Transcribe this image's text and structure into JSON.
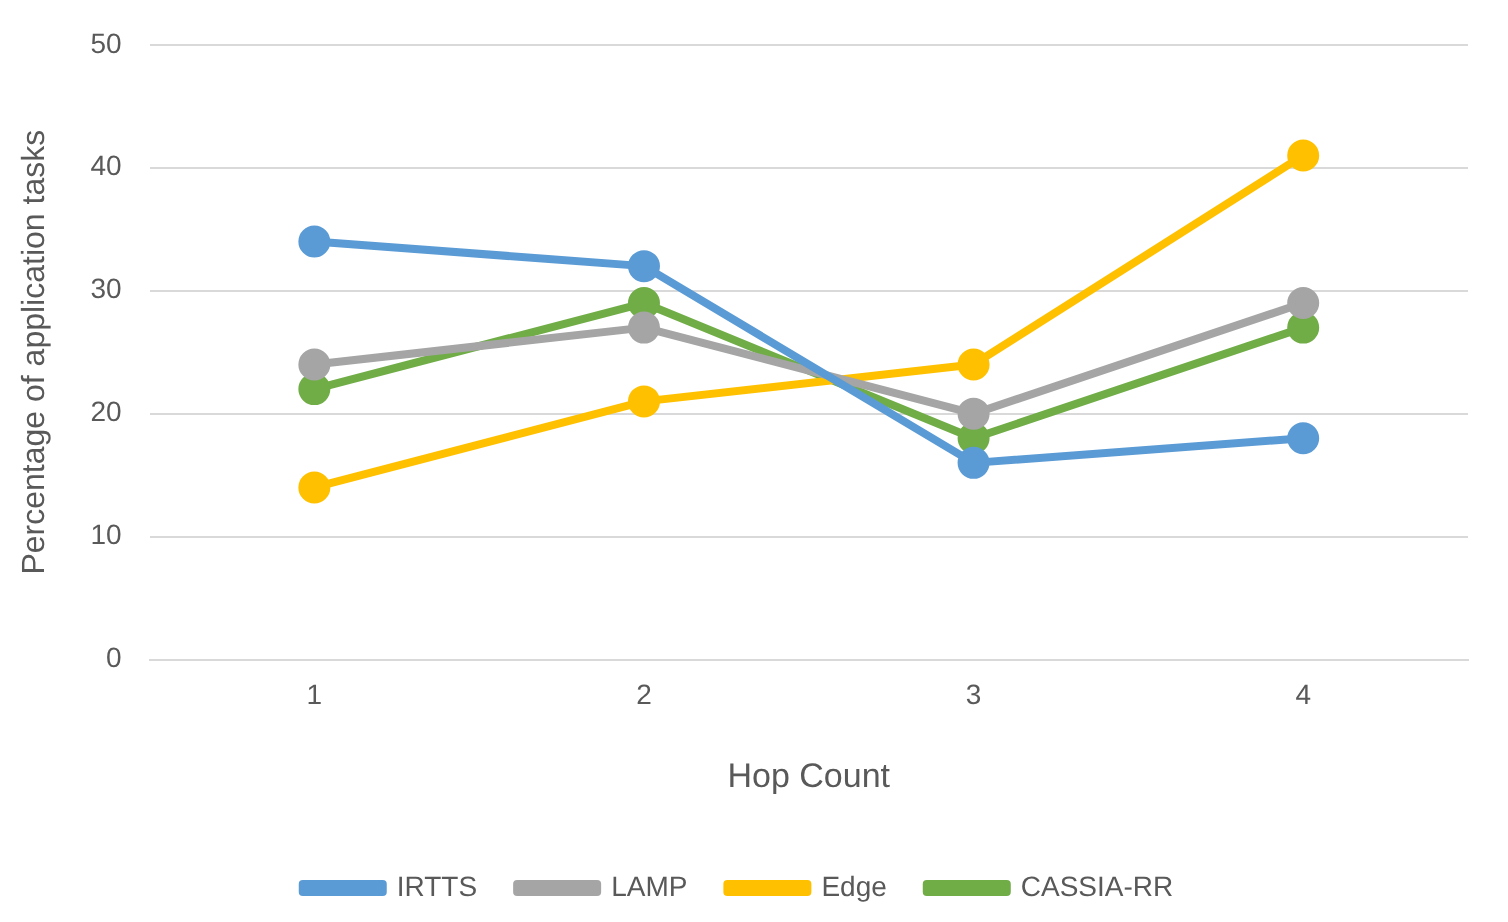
{
  "chart_data": {
    "type": "line",
    "xlabel": "Hop Count",
    "ylabel": "Percentage of application tasks",
    "categories": [
      "1",
      "2",
      "3",
      "4"
    ],
    "series": [
      {
        "name": "IRTTS",
        "color": "#5b9bd5",
        "values": [
          34,
          32,
          16,
          18
        ]
      },
      {
        "name": "LAMP",
        "color": "#a5a5a5",
        "values": [
          24,
          27,
          20,
          29
        ]
      },
      {
        "name": "Edge",
        "color": "#ffc000",
        "values": [
          14,
          21,
          24,
          41
        ]
      },
      {
        "name": "CASSIA-RR",
        "color": "#70ad47",
        "values": [
          22,
          29,
          18,
          27
        ]
      }
    ],
    "ylim": [
      0,
      50
    ],
    "yticks": [
      0,
      10,
      20,
      30,
      40,
      50
    ],
    "grid": "y",
    "legend": "bottom",
    "marker": "circle",
    "line_style": "solid"
  }
}
